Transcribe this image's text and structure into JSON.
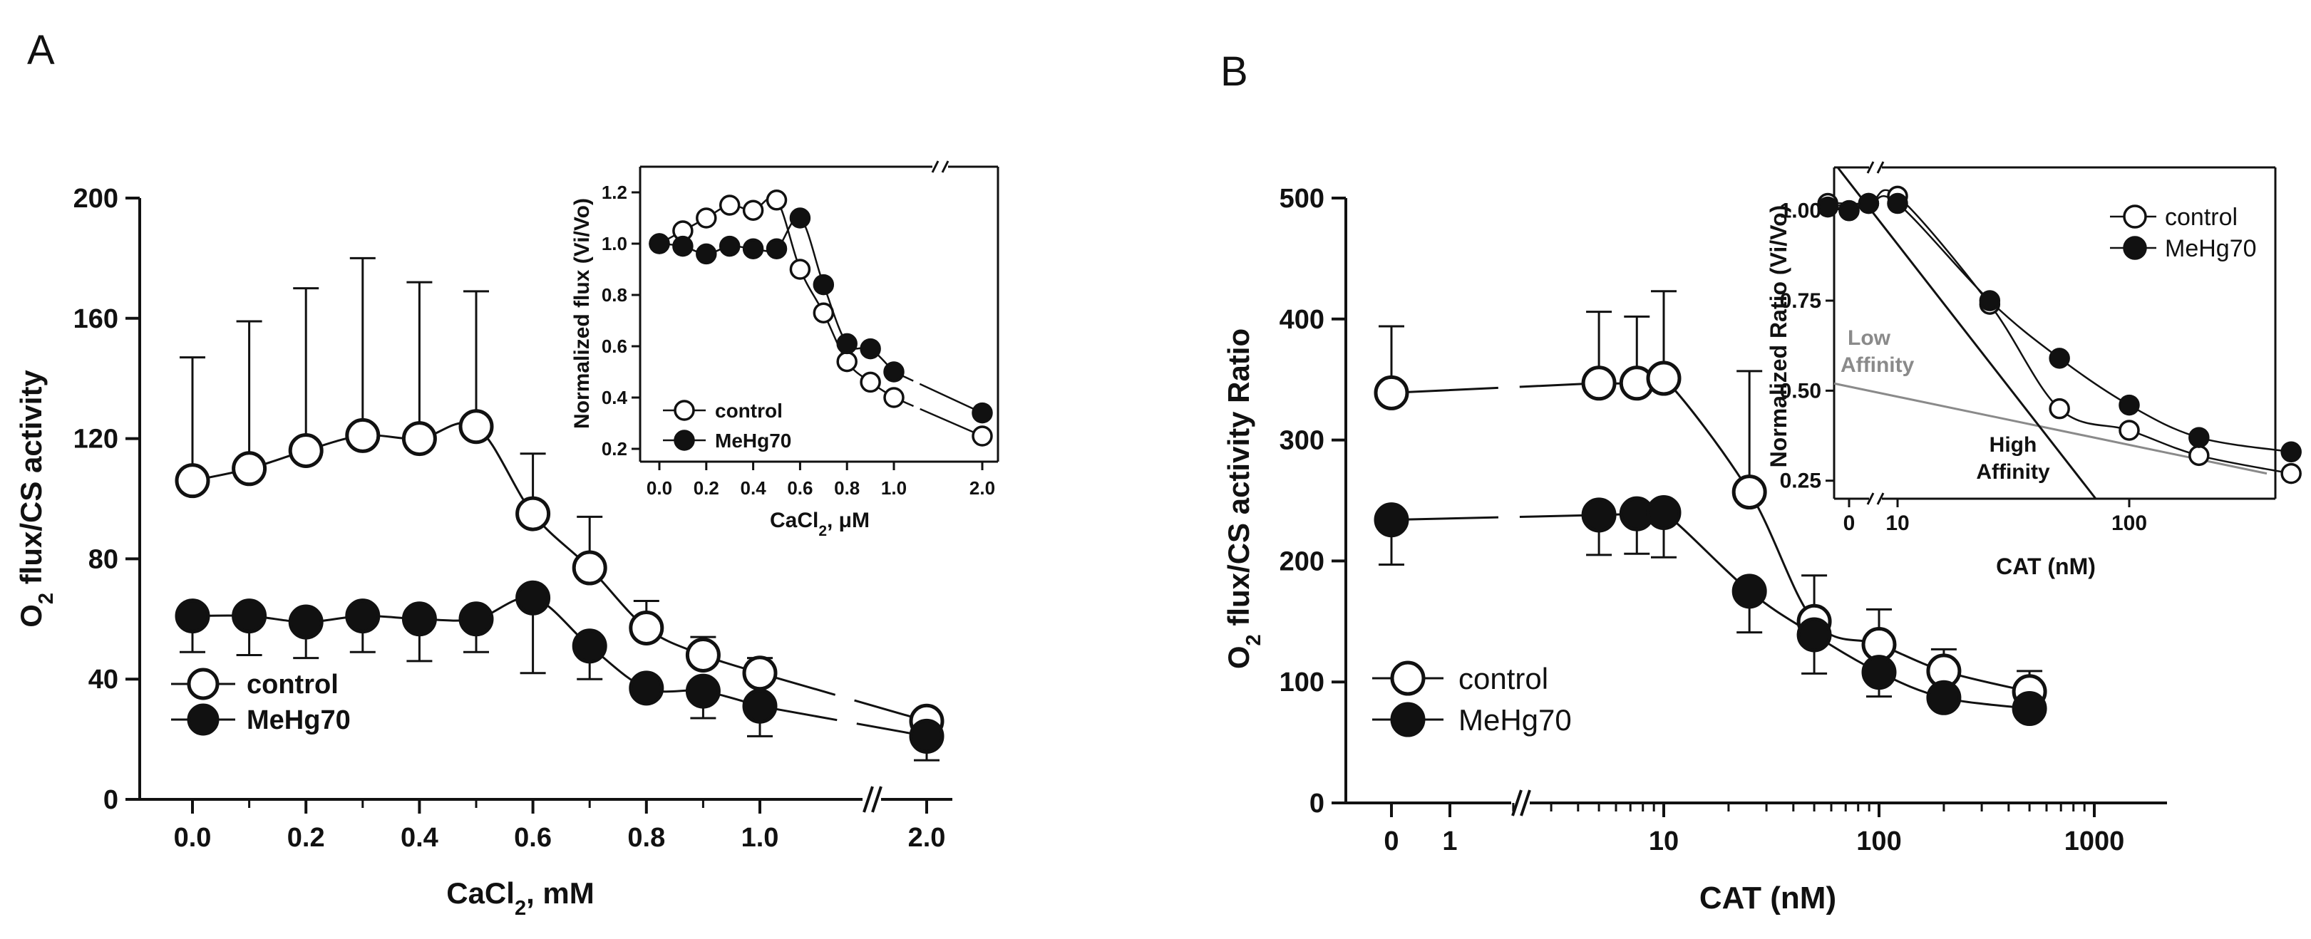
{
  "chart_data": [
    {
      "id": "A-main",
      "panel_label": "A",
      "type": "scatter",
      "xlabel": "CaCl",
      "xlabel_sub": "2",
      "xlabel_suffix": ", mM",
      "ylabel_prefix": "O",
      "ylabel_sub": "2",
      "ylabel_suffix": " flux/CS activity",
      "ylim": [
        0,
        200
      ],
      "yticks": [
        "0",
        "40",
        "80",
        "120",
        "160",
        "200"
      ],
      "xticks": [
        "0.0",
        "0.2",
        "0.4",
        "0.6",
        "0.8",
        "1.0",
        "2.0"
      ],
      "x_break": "between 1.0 and 2.0",
      "legend_position": "bottom-left",
      "x": [
        0.0,
        0.1,
        0.2,
        0.3,
        0.4,
        0.5,
        0.6,
        0.7,
        0.8,
        0.9,
        1.0,
        2.0
      ],
      "series": [
        {
          "name": "control",
          "marker": "open-circle",
          "values": [
            106,
            110,
            116,
            121,
            120,
            124,
            95,
            77,
            57,
            48,
            42,
            26
          ],
          "error_up": [
            41,
            49,
            54,
            59,
            52,
            45,
            20,
            17,
            9,
            6,
            5,
            3
          ]
        },
        {
          "name": "MeHg70",
          "marker": "filled-circle",
          "values": [
            61,
            61,
            59,
            61,
            60,
            60,
            67,
            51,
            37,
            36,
            31,
            21
          ],
          "error_down": [
            12,
            13,
            12,
            12,
            14,
            11,
            25,
            11,
            0,
            9,
            10,
            8
          ]
        }
      ]
    },
    {
      "id": "A-inset",
      "type": "scatter",
      "xlabel": "CaCl",
      "xlabel_sub": "2",
      "xlabel_suffix": ", μM",
      "ylabel": "Normalized flux (Vi/Vo)",
      "ylim": [
        0.15,
        1.3
      ],
      "yticks": [
        "0.2",
        "0.4",
        "0.6",
        "0.8",
        "1.0",
        "1.2"
      ],
      "xticks": [
        "0.0",
        "0.2",
        "0.4",
        "0.6",
        "0.8",
        "1.0",
        "2.0"
      ],
      "legend_position": "bottom-left",
      "x": [
        0.0,
        0.1,
        0.2,
        0.3,
        0.4,
        0.5,
        0.6,
        0.7,
        0.8,
        0.9,
        1.0,
        2.0
      ],
      "series": [
        {
          "name": "control",
          "marker": "open-circle",
          "values": [
            1.0,
            1.05,
            1.1,
            1.15,
            1.13,
            1.17,
            0.9,
            0.73,
            0.54,
            0.46,
            0.4,
            0.25
          ]
        },
        {
          "name": "MeHg70",
          "marker": "filled-circle",
          "values": [
            1.0,
            0.99,
            0.96,
            0.99,
            0.98,
            0.98,
            1.1,
            0.84,
            0.61,
            0.59,
            0.5,
            0.34
          ]
        }
      ]
    },
    {
      "id": "B-main",
      "panel_label": "B",
      "type": "scatter",
      "xlabel": "CAT (nM)",
      "ylabel_prefix": "O",
      "ylabel_sub": "2",
      "ylabel_suffix": " flux/CS activity Ratio",
      "ylim": [
        0,
        500
      ],
      "yticks": [
        "0",
        "100",
        "200",
        "300",
        "400",
        "500"
      ],
      "xticks": [
        "0",
        "1",
        "10",
        "100",
        "1000"
      ],
      "x_scale": "log with axis break after 1",
      "legend_position": "bottom-left",
      "x": [
        0,
        5,
        7.5,
        10,
        25,
        50,
        100,
        200,
        500
      ],
      "series": [
        {
          "name": "control",
          "marker": "open-circle",
          "values": [
            339,
            347,
            347,
            351,
            257,
            150,
            131,
            109,
            92
          ],
          "error_up": [
            55,
            59,
            55,
            72,
            100,
            38,
            29,
            18,
            17
          ]
        },
        {
          "name": "MeHg70",
          "marker": "filled-circle",
          "values": [
            234,
            238,
            239,
            240,
            175,
            139,
            108,
            87,
            78
          ],
          "error_down": [
            37,
            33,
            33,
            37,
            34,
            32,
            20,
            0,
            0
          ]
        }
      ]
    },
    {
      "id": "B-inset",
      "type": "scatter",
      "xlabel": "CAT (nM)",
      "ylabel": "Normalized Ratio (Vi/Vo)",
      "ylim": [
        0.2,
        1.12
      ],
      "yticks": [
        "0.25",
        "0.50",
        "0.75",
        "1.00"
      ],
      "xticks": [
        "0",
        "10",
        "100"
      ],
      "x_scale": "log with axis break",
      "legend_position": "top-right",
      "x": [
        0,
        5,
        7.5,
        10,
        25,
        50,
        100,
        200,
        500
      ],
      "series": [
        {
          "name": "control",
          "marker": "open-circle",
          "values": [
            1.0,
            1.02,
            1.02,
            1.04,
            0.74,
            0.45,
            0.39,
            0.32,
            0.27
          ]
        },
        {
          "name": "MeHg70",
          "marker": "filled-circle",
          "values": [
            1.0,
            1.01,
            1.02,
            1.02,
            0.75,
            0.59,
            0.46,
            0.37,
            0.33
          ]
        }
      ],
      "annotations": [
        {
          "text1": "Low",
          "text2": "Affinity",
          "color": "#8a8a8a"
        },
        {
          "text1": "High",
          "text2": "Affinity",
          "color": "#111111"
        }
      ]
    }
  ]
}
